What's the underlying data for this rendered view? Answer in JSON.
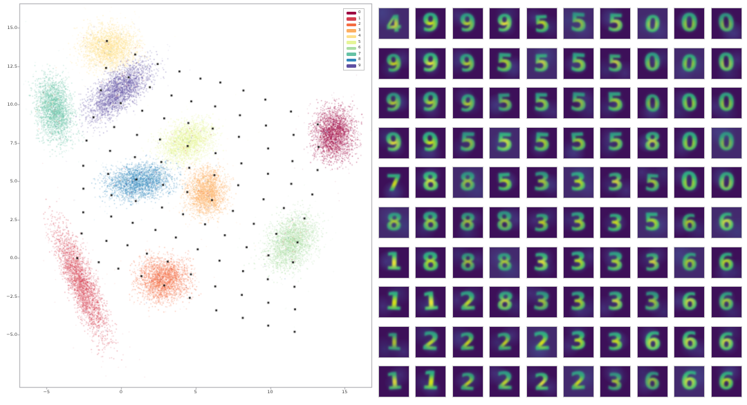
{
  "chart_data": [
    {
      "type": "scatter",
      "title": "",
      "xlabel": "",
      "ylabel": "",
      "xlim": [
        -7.3,
        16.9
      ],
      "ylim": [
        -5.8,
        16.5
      ],
      "grid": false,
      "x_tick_labels": [
        "−5",
        "0",
        "5",
        "10",
        "15"
      ],
      "y_tick_labels": [
        "15.0",
        "12.5",
        "10.0",
        "7.5",
        "5.0",
        "2.5",
        "0.0",
        "−2.5",
        "−5.0"
      ],
      "legend": {
        "position": "upper right",
        "entries": [
          {
            "label": "0",
            "color": "#9e0142"
          },
          {
            "label": "1",
            "color": "#d53e4f"
          },
          {
            "label": "2",
            "color": "#f46d43"
          },
          {
            "label": "3",
            "color": "#fdae61"
          },
          {
            "label": "4",
            "color": "#fee08b"
          },
          {
            "label": "5",
            "color": "#e6f598"
          },
          {
            "label": "6",
            "color": "#abdda4"
          },
          {
            "label": "7",
            "color": "#66c2a5"
          },
          {
            "label": "8",
            "color": "#3288bd"
          },
          {
            "label": "9",
            "color": "#5e4fa2"
          }
        ]
      },
      "clusters": [
        {
          "label": "0",
          "color": "#9e0142",
          "cx": 14.25,
          "cy": 8.1,
          "rx": 1.5,
          "ry": 1.9,
          "rot": 0
        },
        {
          "label": "1",
          "color": "#d53e4f",
          "cx": -2.7,
          "cy": -1.6,
          "rx": 1.0,
          "ry": 4.3,
          "rot": -22
        },
        {
          "label": "2",
          "color": "#f46d43",
          "cx": 2.8,
          "cy": -1.4,
          "rx": 1.85,
          "ry": 1.6,
          "rot": -5
        },
        {
          "label": "3",
          "color": "#fdae61",
          "cx": 5.7,
          "cy": 4.3,
          "rx": 1.44,
          "ry": 1.7,
          "rot": 5
        },
        {
          "label": "4",
          "color": "#fee08b",
          "cx": -0.8,
          "cy": 13.7,
          "rx": 2.1,
          "ry": 1.6,
          "rot": 0
        },
        {
          "label": "5",
          "color": "#e6f598",
          "cx": 4.4,
          "cy": 7.6,
          "rx": 2.1,
          "ry": 1.35,
          "rot": -28
        },
        {
          "label": "6",
          "color": "#abdda4",
          "cx": 11.4,
          "cy": 1.0,
          "rx": 1.6,
          "ry": 2.2,
          "rot": 33
        },
        {
          "label": "7",
          "color": "#66c2a5",
          "cx": -4.5,
          "cy": 9.7,
          "rx": 1.3,
          "ry": 2.4,
          "rot": -10
        },
        {
          "label": "8",
          "color": "#3288bd",
          "cx": 1.2,
          "cy": 5.0,
          "rx": 2.4,
          "ry": 1.26,
          "rot": -8
        },
        {
          "label": "9",
          "color": "#5e4fa2",
          "cx": -0.2,
          "cy": 10.9,
          "rx": 2.9,
          "ry": 1.2,
          "rot": -42
        }
      ],
      "sample_grid_markers": {
        "marker": "black square",
        "color": "#141414",
        "rows": 10,
        "cols": 10,
        "origin": [
          -1.1,
          14.0
        ],
        "step_u": [
          1.6,
          -0.56
        ],
        "step_v": [
          -0.23,
          -1.53
        ]
      }
    },
    {
      "type": "heatmap",
      "title": "",
      "rows": 10,
      "cols": 10,
      "cell_digits": [
        [
          "4",
          "9",
          "9",
          "9",
          "5",
          "5",
          "5",
          "0",
          "0",
          "0"
        ],
        [
          "9",
          "9",
          "9",
          "5",
          "5",
          "5",
          "5",
          "0",
          "0",
          "0"
        ],
        [
          "9",
          "9",
          "9",
          "5",
          "5",
          "5",
          "5",
          "0",
          "0",
          "0"
        ],
        [
          "9",
          "9",
          "5",
          "5",
          "5",
          "5",
          "5",
          "8",
          "0",
          "0"
        ],
        [
          "7",
          "8",
          "8",
          "5",
          "3",
          "3",
          "3",
          "5",
          "0",
          "0"
        ],
        [
          "8",
          "8",
          "8",
          "8",
          "3",
          "3",
          "3",
          "5",
          "6",
          "6"
        ],
        [
          "1",
          "8",
          "8",
          "8",
          "3",
          "3",
          "3",
          "3",
          "6",
          "6"
        ],
        [
          "1",
          "1",
          "2",
          "8",
          "3",
          "3",
          "3",
          "3",
          "6",
          "6"
        ],
        [
          "1",
          "2",
          "2",
          "2",
          "2",
          "3",
          "3",
          "6",
          "6",
          "6"
        ],
        [
          "1",
          "1",
          "2",
          "2",
          "2",
          "2",
          "3",
          "6",
          "6",
          "6"
        ]
      ],
      "colormap": {
        "background": "#3d1059",
        "patch": "#45356f",
        "stroke_teal": "#2a9d8f",
        "stroke_green": "#35b779",
        "stroke_yellow": "#e8e334",
        "cell_border": "#c9c9c9"
      }
    }
  ]
}
